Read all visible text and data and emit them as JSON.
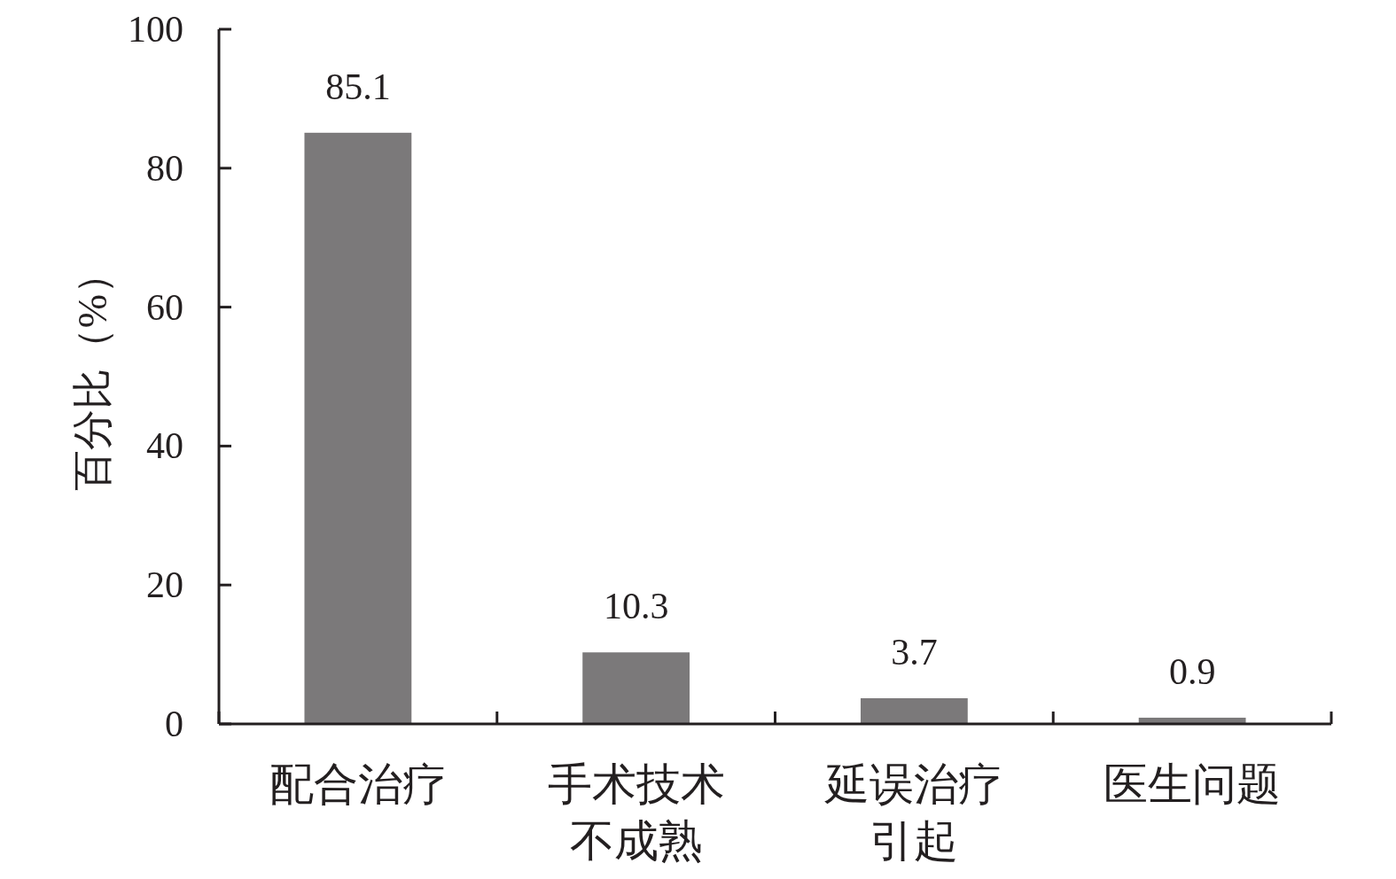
{
  "chart_data": {
    "type": "bar",
    "ylabel": "百分比（%）",
    "categories": [
      "配合治疗",
      "手术技术不成熟",
      "延误治疗引起",
      "医生问题"
    ],
    "values": [
      85.1,
      10.3,
      3.7,
      0.9
    ],
    "color": "#7b797a",
    "ylim": [
      0,
      100
    ],
    "yticks": [
      0,
      20,
      40,
      60,
      80,
      100
    ],
    "data_labels": true,
    "grid": false
  }
}
